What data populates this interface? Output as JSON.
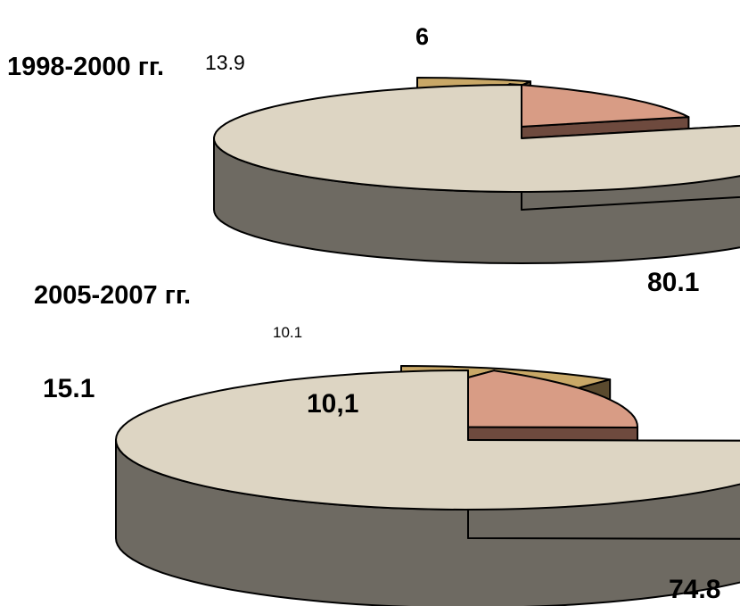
{
  "chart_data": [
    {
      "type": "pie",
      "title": "1998-2000 гг.",
      "style": "3d-exploded",
      "values": [
        80.1,
        13.9,
        6
      ],
      "labels": [
        "80.1",
        "13.9",
        "6"
      ],
      "colors": {
        "top": [
          "#ddd5c3",
          "#d89c85",
          "#c9a867"
        ],
        "side": [
          "#6e6a62",
          "#6e4a3e",
          "#5a4a2e"
        ]
      }
    },
    {
      "type": "pie",
      "title": "2005-2007 гг.",
      "style": "3d-exploded",
      "values": [
        74.8,
        15.1,
        10.1
      ],
      "labels": [
        "74.8",
        "15.1",
        "10,1"
      ],
      "extra_label": "10.1",
      "colors": {
        "top": [
          "#ddd5c3",
          "#d89c85",
          "#c9a867"
        ],
        "side": [
          "#6e6a62",
          "#6e4a3e",
          "#5a4a2e"
        ]
      }
    }
  ]
}
